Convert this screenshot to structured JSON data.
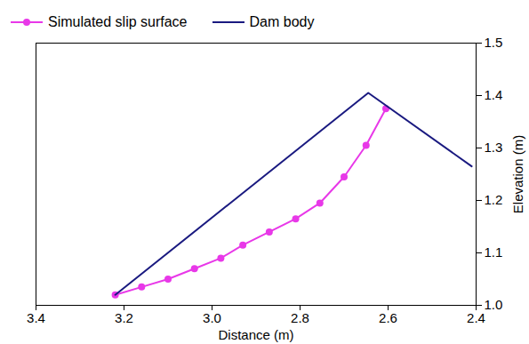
{
  "chart_data": {
    "type": "line",
    "x_label": "Distance (m)",
    "y_label": "Elevation (m)",
    "xlim": [
      3.4,
      2.4
    ],
    "xticks": [
      3.4,
      3.2,
      {
        "value": 3,
        "label": "3.0"
      },
      2.8,
      2.6,
      2.4
    ],
    "ylim": [
      1,
      1.5
    ],
    "yticks": [
      {
        "value": 1,
        "label": "1.0"
      },
      1.1,
      1.2,
      1.3,
      1.4,
      1.5
    ],
    "series": [
      {
        "name": "Simulated slip surface",
        "color": "#e838e8",
        "marker": "circle",
        "x": [
          3.22,
          3.16,
          3.1,
          3.04,
          2.98,
          2.93,
          2.87,
          2.81,
          2.755,
          2.7,
          2.65,
          2.605
        ],
        "values": [
          1.02,
          1.035,
          1.05,
          1.07,
          1.09,
          1.115,
          1.14,
          1.165,
          1.195,
          1.245,
          1.305,
          1.375
        ]
      },
      {
        "name": "Dam body",
        "color": "#1a1a80",
        "x": [
          3.22,
          2.645,
          2.41
        ],
        "values": [
          1.02,
          1.405,
          1.265
        ]
      }
    ]
  }
}
